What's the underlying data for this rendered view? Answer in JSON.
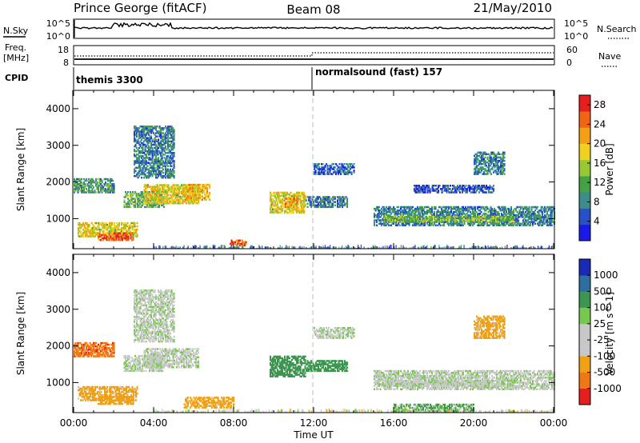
{
  "header": {
    "station": "Prince George (fitACF)",
    "beam": "Beam 08",
    "date": "21/May/2010"
  },
  "strip_nsky": {
    "label": "N.Sky",
    "left_ticks": [
      "10^5",
      "10^0"
    ],
    "right_ticks": [
      "10^5",
      "10^0"
    ],
    "right_label": "N.Search"
  },
  "strip_freq": {
    "label_line1": "Freq.",
    "label_line2": "[MHz]",
    "left_ticks": [
      "18",
      "8"
    ],
    "right_ticks": [
      "60",
      "0"
    ],
    "right_label": "Nave"
  },
  "cpid": {
    "label": "CPID",
    "modes": [
      {
        "name": "themis 3300",
        "start_hour": 0
      },
      {
        "name": "normalsound (fast) 157",
        "start_hour": 12
      }
    ]
  },
  "chart_data": [
    {
      "type": "heatmap",
      "name": "power-panel",
      "ylabel": "Slant Range [km]",
      "xlabel": "",
      "xlim": [
        0,
        24
      ],
      "ylim": [
        180,
        4500
      ],
      "yticks": [
        1000,
        2000,
        3000,
        4000
      ],
      "colorbar": {
        "label": "Power [dB]",
        "ticks": [
          4,
          8,
          12,
          16,
          20,
          24,
          28
        ],
        "range": [
          0,
          30
        ],
        "colors": [
          "#1a1ae6",
          "#2850c8",
          "#3c8c8c",
          "#46a046",
          "#96c832",
          "#f0d21e",
          "#f5a014",
          "#f06414",
          "#e61e1e"
        ]
      },
      "echo_regions": [
        {
          "t0": 0.0,
          "t1": 2.0,
          "r0": 1700,
          "r1": 2100,
          "value": 10
        },
        {
          "t0": 0.2,
          "t1": 3.2,
          "r0": 500,
          "r1": 900,
          "value": 18
        },
        {
          "t0": 1.2,
          "t1": 3.0,
          "r0": 400,
          "r1": 620,
          "value": 26
        },
        {
          "t0": 2.5,
          "t1": 4.5,
          "r0": 1300,
          "r1": 1750,
          "value": 12
        },
        {
          "t0": 3.5,
          "t1": 6.2,
          "r0": 1400,
          "r1": 1900,
          "value": 18
        },
        {
          "t0": 3.0,
          "t1": 5.0,
          "r0": 2100,
          "r1": 3500,
          "value": 8
        },
        {
          "t0": 5.5,
          "t1": 6.8,
          "r0": 1500,
          "r1": 1950,
          "value": 20
        },
        {
          "t0": 7.8,
          "t1": 8.6,
          "r0": 250,
          "r1": 400,
          "value": 26
        },
        {
          "t0": 9.8,
          "t1": 11.6,
          "r0": 1150,
          "r1": 1700,
          "value": 18
        },
        {
          "t0": 10.5,
          "t1": 11.2,
          "r0": 1300,
          "r1": 1550,
          "value": 22
        },
        {
          "t0": 11.6,
          "t1": 13.7,
          "r0": 1300,
          "r1": 1600,
          "value": 8
        },
        {
          "t0": 12.0,
          "t1": 14.0,
          "r0": 2200,
          "r1": 2500,
          "value": 6
        },
        {
          "t0": 15.0,
          "t1": 24.0,
          "r0": 800,
          "r1": 1300,
          "value": 8
        },
        {
          "t0": 15.5,
          "t1": 22.0,
          "r0": 900,
          "r1": 1050,
          "value": 14
        },
        {
          "t0": 17.0,
          "t1": 21.0,
          "r0": 1700,
          "r1": 1900,
          "value": 5
        },
        {
          "t0": 20.0,
          "t1": 21.5,
          "r0": 2200,
          "r1": 2800,
          "value": 8
        }
      ]
    },
    {
      "type": "heatmap",
      "name": "velocity-panel",
      "ylabel": "Slant Range [km]",
      "xlabel": "Time UT",
      "xlim": [
        0,
        24
      ],
      "ylim": [
        180,
        4500
      ],
      "yticks": [
        1000,
        2000,
        3000,
        4000
      ],
      "xticks": [
        "00:00",
        "04:00",
        "08:00",
        "12:00",
        "16:00",
        "20:00",
        "00:00"
      ],
      "colorbar": {
        "label": "Velocity [m s^-1]",
        "ticks": [
          "1000",
          "500",
          "100",
          "25",
          "-25",
          "-100",
          "-500",
          "-1000"
        ],
        "colors": [
          "#1a2ab4",
          "#2c6ea0",
          "#3c9650",
          "#78c850",
          "#c8c8c8",
          "#c8c8c8",
          "#f0a014",
          "#f07814",
          "#e61e1e"
        ]
      },
      "echo_regions": [
        {
          "t0": 0.0,
          "t1": 2.0,
          "r0": 1700,
          "r1": 2100,
          "value": -700
        },
        {
          "t0": 0.2,
          "t1": 3.2,
          "r0": 500,
          "r1": 900,
          "value": -150
        },
        {
          "t0": 1.2,
          "t1": 3.0,
          "r0": 400,
          "r1": 620,
          "value": -200
        },
        {
          "t0": 2.5,
          "t1": 4.5,
          "r0": 1300,
          "r1": 1750,
          "value": 0
        },
        {
          "t0": 3.5,
          "t1": 6.2,
          "r0": 1400,
          "r1": 1900,
          "value": 0
        },
        {
          "t0": 3.0,
          "t1": 5.0,
          "r0": 2100,
          "r1": 3500,
          "value": 0
        },
        {
          "t0": 5.5,
          "t1": 8.0,
          "r0": 300,
          "r1": 600,
          "value": -150
        },
        {
          "t0": 9.8,
          "t1": 11.6,
          "r0": 1150,
          "r1": 1700,
          "value": 150
        },
        {
          "t0": 11.6,
          "t1": 13.7,
          "r0": 1300,
          "r1": 1600,
          "value": 200
        },
        {
          "t0": 12.0,
          "t1": 14.0,
          "r0": 2200,
          "r1": 2500,
          "value": 0
        },
        {
          "t0": 15.0,
          "t1": 24.0,
          "r0": 800,
          "r1": 1300,
          "value": 0
        },
        {
          "t0": 15.5,
          "t1": 22.0,
          "r0": 900,
          "r1": 1050,
          "value": 0
        },
        {
          "t0": 16.0,
          "t1": 20.0,
          "r0": 200,
          "r1": 400,
          "value": 60
        },
        {
          "t0": 20.0,
          "t1": 21.5,
          "r0": 2200,
          "r1": 2800,
          "value": -150
        }
      ]
    }
  ]
}
